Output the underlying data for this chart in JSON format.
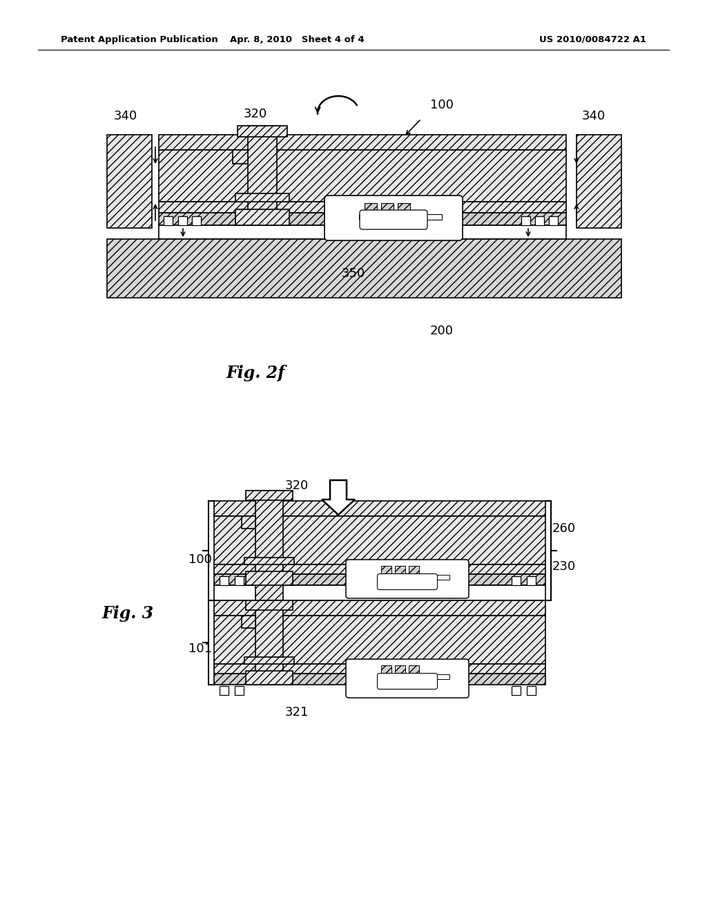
{
  "page_header_left": "Patent Application Publication",
  "page_header_center": "Apr. 8, 2010   Sheet 4 of 4",
  "page_header_right": "US 2010/0084722 A1",
  "fig2f_label": "Fig. 2f",
  "fig3_label": "Fig. 3",
  "hatch": "///",
  "bg": "white",
  "ec": "black",
  "fc_hatch": "#e8e8e8",
  "fc_white": "white"
}
